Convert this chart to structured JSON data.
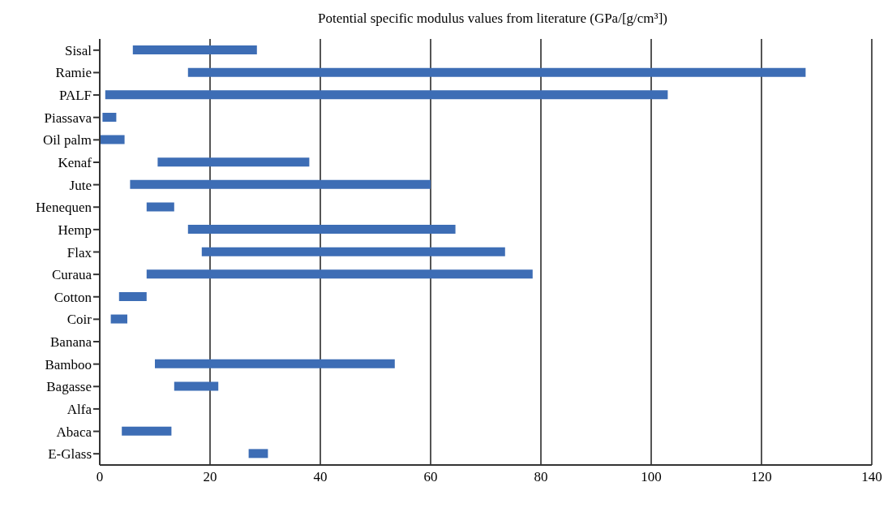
{
  "chart_data": {
    "type": "bar",
    "orientation": "horizontal",
    "title": "Potential specific modulus values from literature (GPa/[g/cm³])",
    "categories": [
      "Sisal",
      "Ramie",
      "PALF",
      "Piassava",
      "Oil palm",
      "Kenaf",
      "Jute",
      "Henequen",
      "Hemp",
      "Flax",
      "Curaua",
      "Cotton",
      "Coir",
      "Banana",
      "Bamboo",
      "Bagasse",
      "Alfa",
      "Abaca",
      "E-Glass"
    ],
    "base": [
      6,
      16,
      1,
      0.5,
      0,
      10.5,
      5.5,
      8.5,
      16,
      18.5,
      8.5,
      3.5,
      2,
      null,
      10,
      13.5,
      null,
      4,
      27
    ],
    "values": [
      22.5,
      112,
      102,
      2.5,
      4.5,
      27.5,
      54.5,
      5,
      48.5,
      55,
      70,
      5,
      3,
      null,
      43.5,
      8,
      null,
      9,
      3.5
    ],
    "color": "#3d6db5",
    "xlim": [
      0,
      140
    ],
    "xticks": [
      0,
      20,
      40,
      60,
      80,
      100,
      120,
      140
    ],
    "grid": "x"
  }
}
